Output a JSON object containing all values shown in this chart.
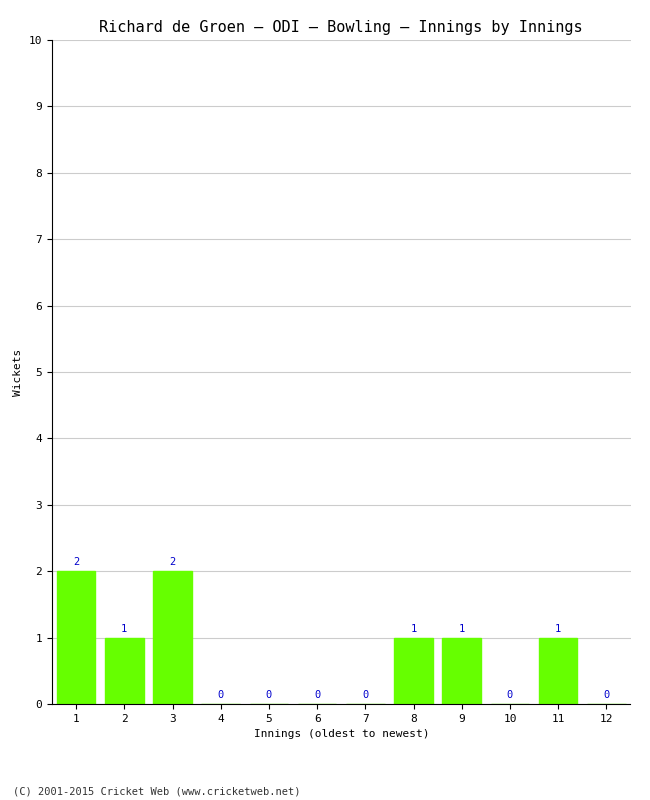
{
  "title": "Richard de Groen – ODI – Bowling – Innings by Innings",
  "xlabel": "Innings (oldest to newest)",
  "ylabel": "Wickets",
  "categories": [
    "1",
    "2",
    "3",
    "4",
    "5",
    "6",
    "7",
    "8",
    "9",
    "10",
    "11",
    "12"
  ],
  "values": [
    2,
    1,
    2,
    0,
    0,
    0,
    0,
    1,
    1,
    0,
    1,
    0
  ],
  "bar_color": "#66ff00",
  "bar_edge_color": "#66ff00",
  "label_color_nonzero": "#0000cc",
  "label_color_zero": "#0000cc",
  "ylim": [
    0,
    10
  ],
  "yticks": [
    0,
    1,
    2,
    3,
    4,
    5,
    6,
    7,
    8,
    9,
    10
  ],
  "background_color": "#ffffff",
  "grid_color": "#cccccc",
  "title_fontsize": 11,
  "axis_label_fontsize": 8,
  "tick_fontsize": 8,
  "bar_label_fontsize": 7.5,
  "footer_text": "(C) 2001-2015 Cricket Web (www.cricketweb.net)",
  "footer_fontsize": 7.5
}
